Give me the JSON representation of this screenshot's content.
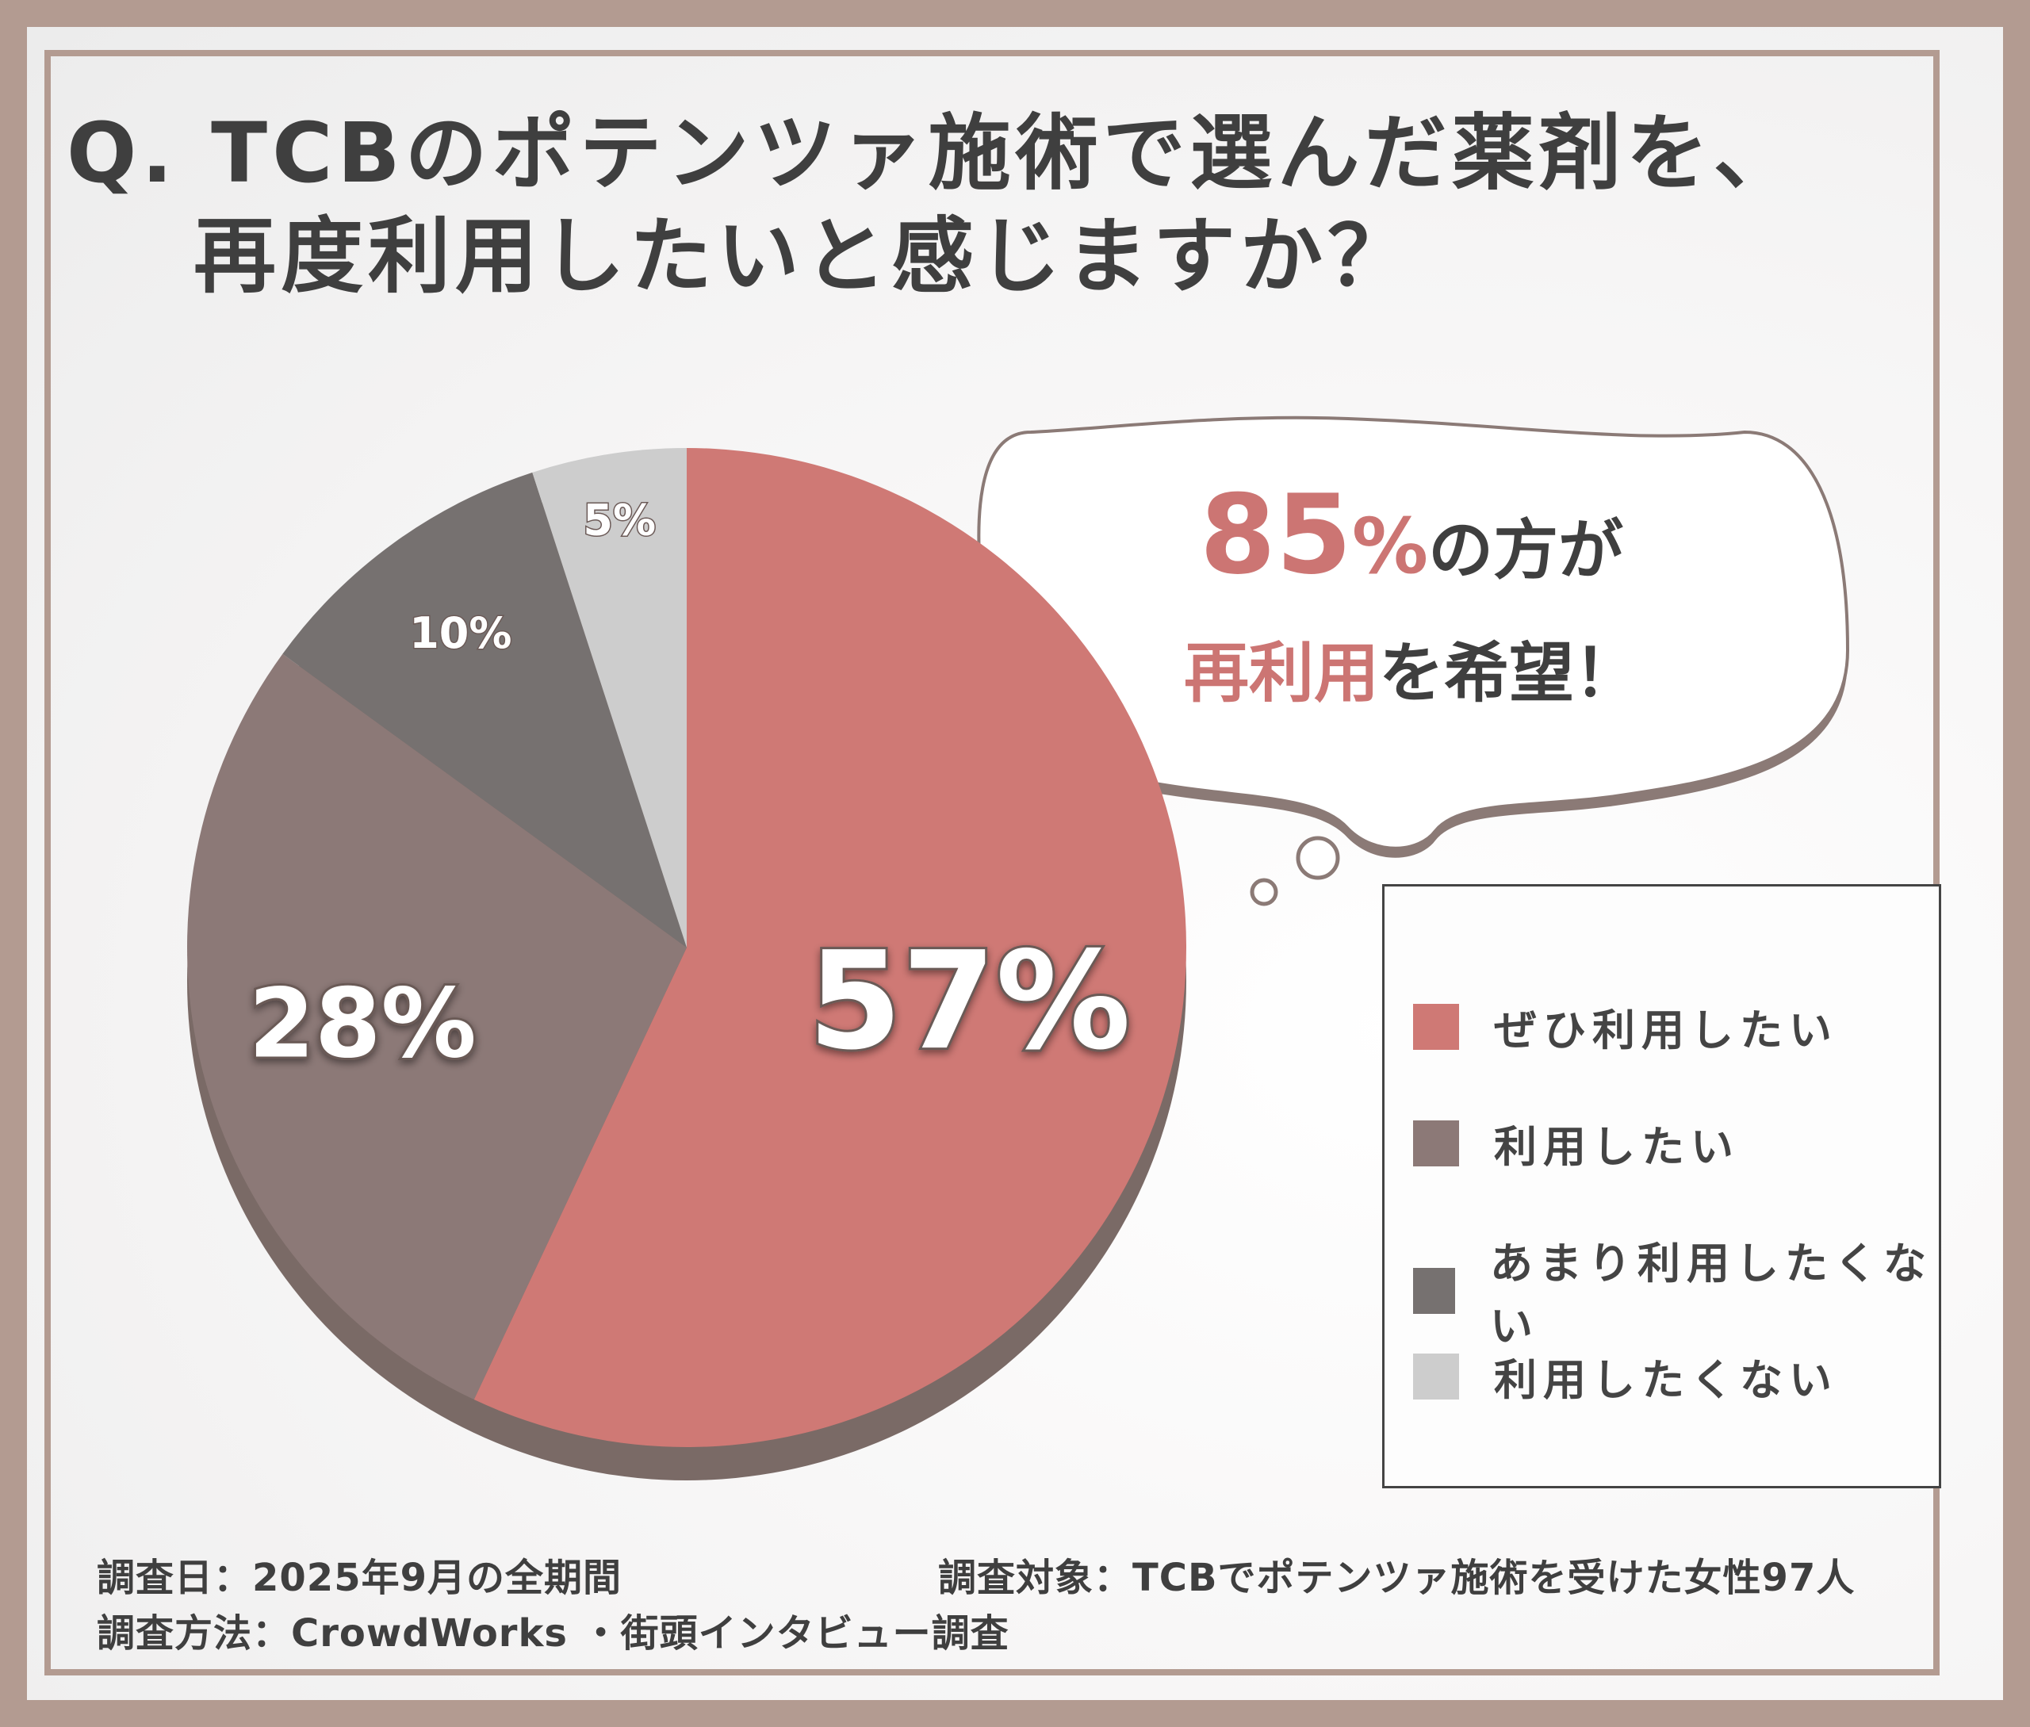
{
  "title": {
    "line1": "Q. TCBのポテンツァ施術で選んだ薬剤を、",
    "line2": "再度利用したいと感じますか？"
  },
  "bubble": {
    "pct": "85",
    "pct_sign": "%",
    "line1_rest": "の方が",
    "line2_em": "再利用",
    "line2_rest": "を希望！"
  },
  "chart_data": {
    "type": "pie",
    "title": "Q. TCBのポテンツァ施術で選んだ薬剤を、再度利用したいと感じますか？",
    "slices": [
      {
        "label": "ぜひ利用したい",
        "value": 57,
        "display": "57%",
        "color": "#cf7975"
      },
      {
        "label": "利用したい",
        "value": 28,
        "display": "28%",
        "color": "#8c7977"
      },
      {
        "label": "あまり利用したくない",
        "value": 10,
        "display": "10%",
        "color": "#767170"
      },
      {
        "label": "利用したくない",
        "value": 5,
        "display": "5%",
        "color": "#cdcdcd"
      }
    ],
    "legend_position": "right"
  },
  "footer": {
    "date": "調査日：2025年9月の全期間",
    "target": "調査対象：TCBでポテンツァ施術を受けた女性97人",
    "method": "調査方法：CrowdWorks ・街頭インタビュー調査"
  },
  "colors": {
    "frame": "#b39b91",
    "accent": "#cc7573",
    "text": "#3f3f3f",
    "pie_shadow": "#7a6a66"
  }
}
